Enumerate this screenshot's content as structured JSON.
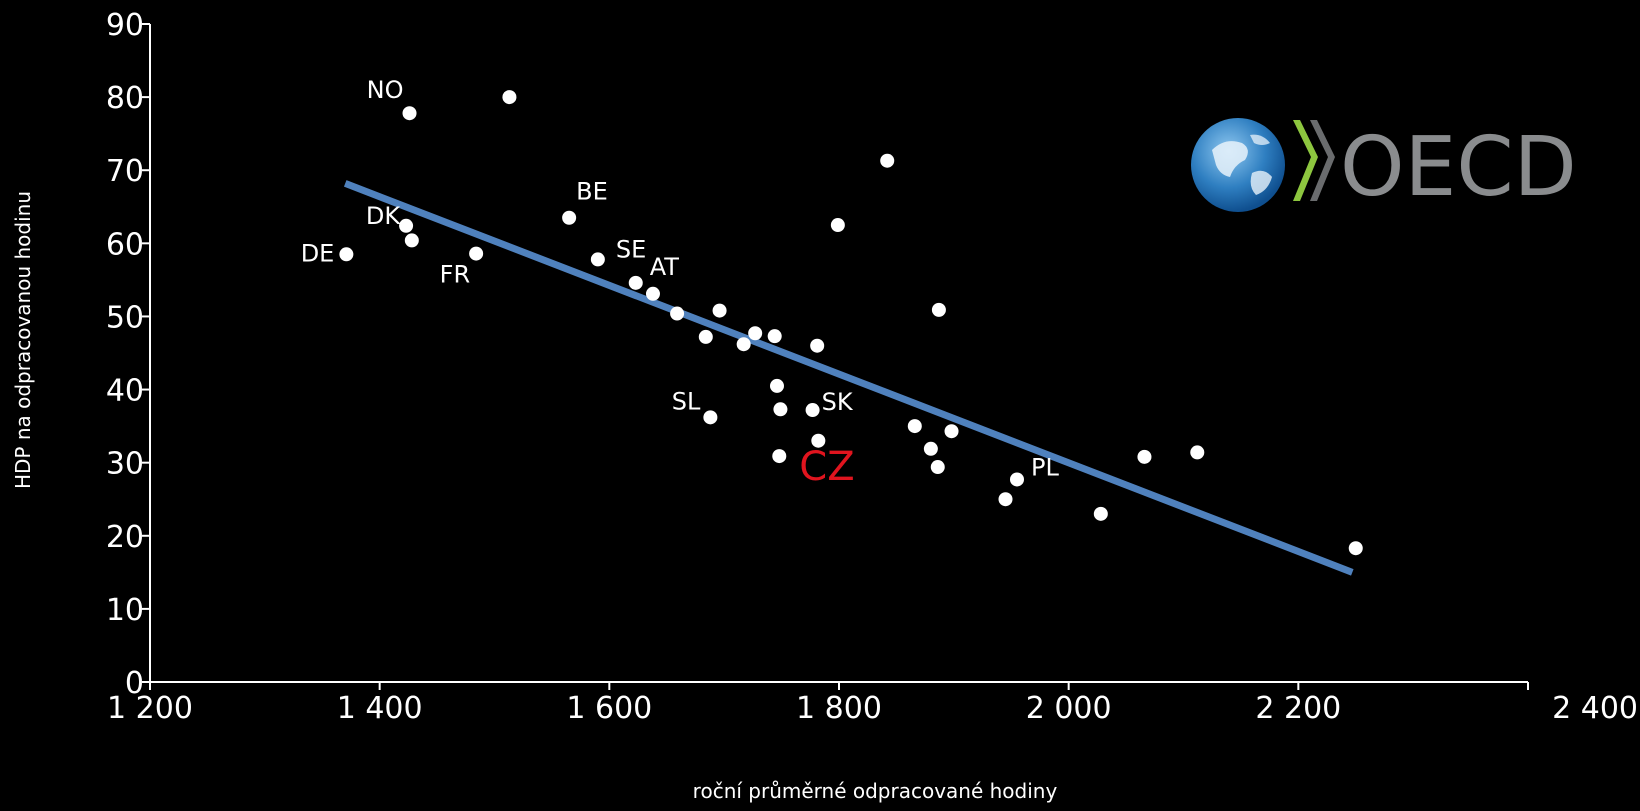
{
  "chart_data": {
    "type": "scatter",
    "xlabel": "roční průměrné odpracované hodiny",
    "ylabel": "HDP na odpracovanou hodinu",
    "xlim": [
      1200,
      2400
    ],
    "ylim": [
      0,
      90
    ],
    "x_ticks": [
      1200,
      1400,
      1600,
      1800,
      2000,
      2200,
      2400
    ],
    "x_tick_labels": [
      "1 200",
      "1 400",
      "1 600",
      "1 800",
      "2 000",
      "2 200",
      "2 400"
    ],
    "y_ticks": [
      0,
      10,
      20,
      30,
      40,
      50,
      60,
      70,
      80,
      90
    ],
    "y_tick_labels": [
      "0",
      "10",
      "20",
      "30",
      "40",
      "50",
      "60",
      "70",
      "80",
      "90"
    ],
    "grid": false,
    "points": [
      {
        "x": 1371,
        "y": 58.5,
        "label": "DE"
      },
      {
        "x": 1426,
        "y": 77.8,
        "label": "NO"
      },
      {
        "x": 1513,
        "y": 80.0,
        "label": ""
      },
      {
        "x": 1423,
        "y": 62.4,
        "label": "DK"
      },
      {
        "x": 1428,
        "y": 60.4,
        "label": ""
      },
      {
        "x": 1484,
        "y": 58.6,
        "label": "FR"
      },
      {
        "x": 1565,
        "y": 63.5,
        "label": "BE"
      },
      {
        "x": 1590,
        "y": 57.8,
        "label": "SE"
      },
      {
        "x": 1623,
        "y": 54.6,
        "label": "AT"
      },
      {
        "x": 1638,
        "y": 53.1,
        "label": ""
      },
      {
        "x": 1659,
        "y": 50.4,
        "label": ""
      },
      {
        "x": 1696,
        "y": 50.8,
        "label": ""
      },
      {
        "x": 1684,
        "y": 47.2,
        "label": ""
      },
      {
        "x": 1717,
        "y": 46.2,
        "label": ""
      },
      {
        "x": 1727,
        "y": 47.7,
        "label": ""
      },
      {
        "x": 1744,
        "y": 47.3,
        "label": ""
      },
      {
        "x": 1781,
        "y": 46.0,
        "label": ""
      },
      {
        "x": 1746,
        "y": 40.5,
        "label": ""
      },
      {
        "x": 1688,
        "y": 36.2,
        "label": "SL"
      },
      {
        "x": 1749,
        "y": 37.3,
        "label": ""
      },
      {
        "x": 1777,
        "y": 37.2,
        "label": "SK"
      },
      {
        "x": 1782,
        "y": 33.0,
        "label": ""
      },
      {
        "x": 1748,
        "y": 30.9,
        "label": "CZ",
        "highlight": true
      },
      {
        "x": 1799,
        "y": 62.5,
        "label": ""
      },
      {
        "x": 1842,
        "y": 71.3,
        "label": ""
      },
      {
        "x": 1866,
        "y": 35.0,
        "label": ""
      },
      {
        "x": 1880,
        "y": 31.9,
        "label": ""
      },
      {
        "x": 1886,
        "y": 29.4,
        "label": ""
      },
      {
        "x": 1887,
        "y": 50.9,
        "label": ""
      },
      {
        "x": 1898,
        "y": 34.3,
        "label": ""
      },
      {
        "x": 1955,
        "y": 27.7,
        "label": "PL"
      },
      {
        "x": 1945,
        "y": 25.0,
        "label": ""
      },
      {
        "x": 2028,
        "y": 23.0,
        "label": ""
      },
      {
        "x": 2066,
        "y": 30.8,
        "label": ""
      },
      {
        "x": 2112,
        "y": 31.4,
        "label": ""
      },
      {
        "x": 2250,
        "y": 18.3,
        "label": ""
      }
    ],
    "trendline": {
      "x": [
        1370,
        2247
      ],
      "y": [
        68.2,
        15.0
      ]
    },
    "colors": {
      "background": "#000000",
      "point": "#ffffff",
      "trendline": "#4f81bd",
      "highlight_label": "#e0141e",
      "axis": "#ffffff"
    }
  },
  "logo": {
    "text": "OECD",
    "color": "#8a8c8e",
    "chevron_color": "#8dc63f"
  }
}
